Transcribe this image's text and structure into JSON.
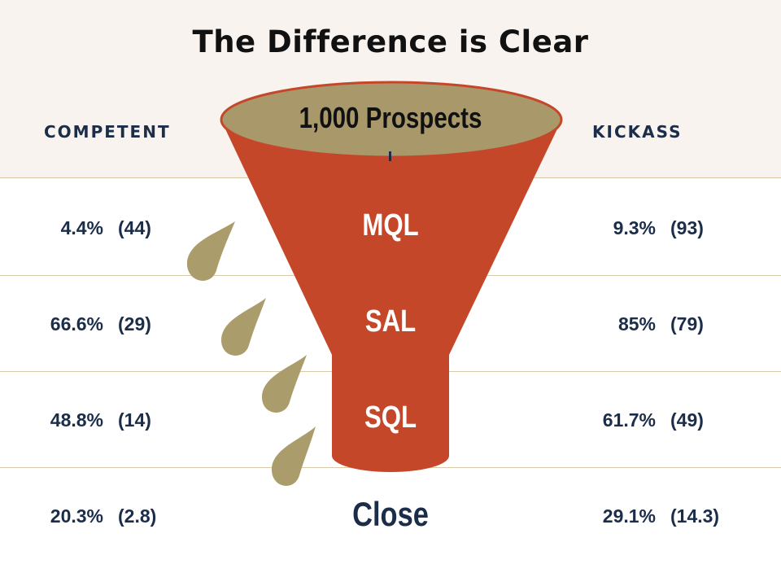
{
  "title": "The Difference is Clear",
  "columns": {
    "left": "COMPETENT",
    "right": "KICKASS"
  },
  "top_label": "1,000 Prospects",
  "stages": [
    {
      "name": "MQL",
      "competent": {
        "pct": "4.4%",
        "count": "(44)"
      },
      "kickass": {
        "pct": "9.3%",
        "count": "(93)"
      }
    },
    {
      "name": "SAL",
      "competent": {
        "pct": "66.6%",
        "count": "(29)"
      },
      "kickass": {
        "pct": "85%",
        "count": "(79)"
      }
    },
    {
      "name": "SQL",
      "competent": {
        "pct": "48.8%",
        "count": "(14)"
      },
      "kickass": {
        "pct": "61.7%",
        "count": "(49)"
      }
    },
    {
      "name": "Close",
      "competent": {
        "pct": "20.3%",
        "count": "(2.8)"
      },
      "kickass": {
        "pct": "29.1%",
        "count": "(14.3)"
      }
    }
  ],
  "colors": {
    "funnel": "#c5472a",
    "funnel_rim": "#a9996a",
    "drops": "#ab9c6c",
    "text_navy": "#1c2d4a",
    "header_bg": "#f8f3ee",
    "rule": "#d8c9a8"
  }
}
